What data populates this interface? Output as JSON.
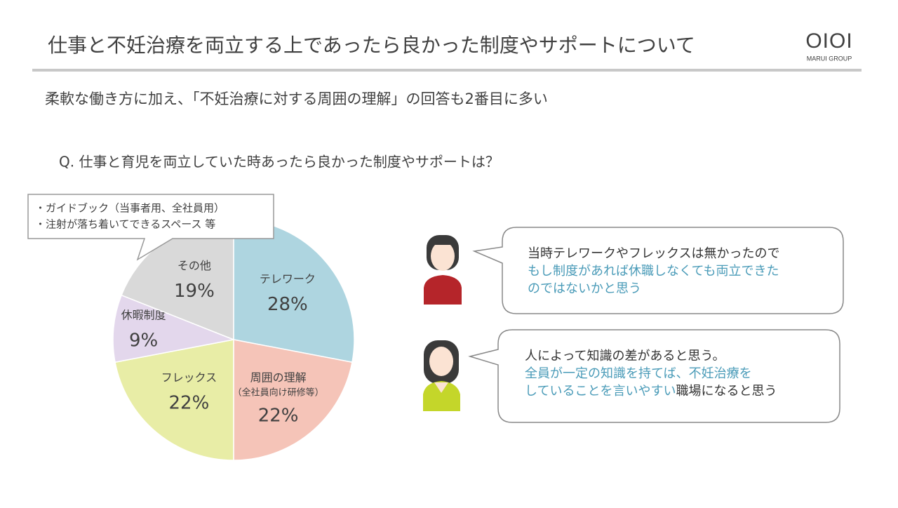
{
  "header": {
    "title": "仕事と不妊治療を両立する上であったら良かった制度やサポートについて",
    "logo": "OIOI",
    "logo_sub": "MARUI GROUP"
  },
  "subtitle": "柔軟な働き方に加え、「不妊治療に対する周囲の理解」の回答も2番目に多い",
  "question": "Q.  仕事と育児を両立していた時あったら良かった制度やサポートは？",
  "chart_data": {
    "type": "pie",
    "categories": [
      "テレワーク",
      "周囲の理解",
      "フレックス",
      "休暇制度",
      "その他"
    ],
    "values": [
      28,
      22,
      22,
      9,
      19
    ],
    "value_labels": [
      "28%",
      "22%",
      "22%",
      "9%",
      "19%"
    ],
    "colors": [
      "#aed5e0",
      "#f5c4b8",
      "#e8eda6",
      "#e3d7ec",
      "#d9d9d9"
    ],
    "annotations": [
      {
        "text": "（全社員向け研修等）"
      }
    ],
    "callout": [
      "・ガイドブック（当事者用、全社員用）",
      "・注射が落ち着いてできるスペース 等"
    ]
  },
  "comments": [
    {
      "lines": [
        [
          {
            "text": "当時テレワークやフレックスは無かったので",
            "color": "#333333"
          }
        ],
        [
          {
            "text": "もし制度があれば休職しなくても両立できた",
            "color": "#4a9bb8"
          }
        ],
        [
          {
            "text": "のではないかと思う",
            "color": "#4a9bb8"
          }
        ]
      ]
    },
    {
      "lines": [
        [
          {
            "text": "人によって知識の差があると思う。",
            "color": "#333333"
          }
        ],
        [
          {
            "text": "全員が一定の知識を持てば、不妊治療を",
            "color": "#4a9bb8"
          }
        ],
        [
          {
            "text": "していることを言いやすい",
            "color": "#4a9bb8"
          },
          {
            "text": "職場になると思う",
            "color": "#333333"
          }
        ]
      ]
    }
  ]
}
